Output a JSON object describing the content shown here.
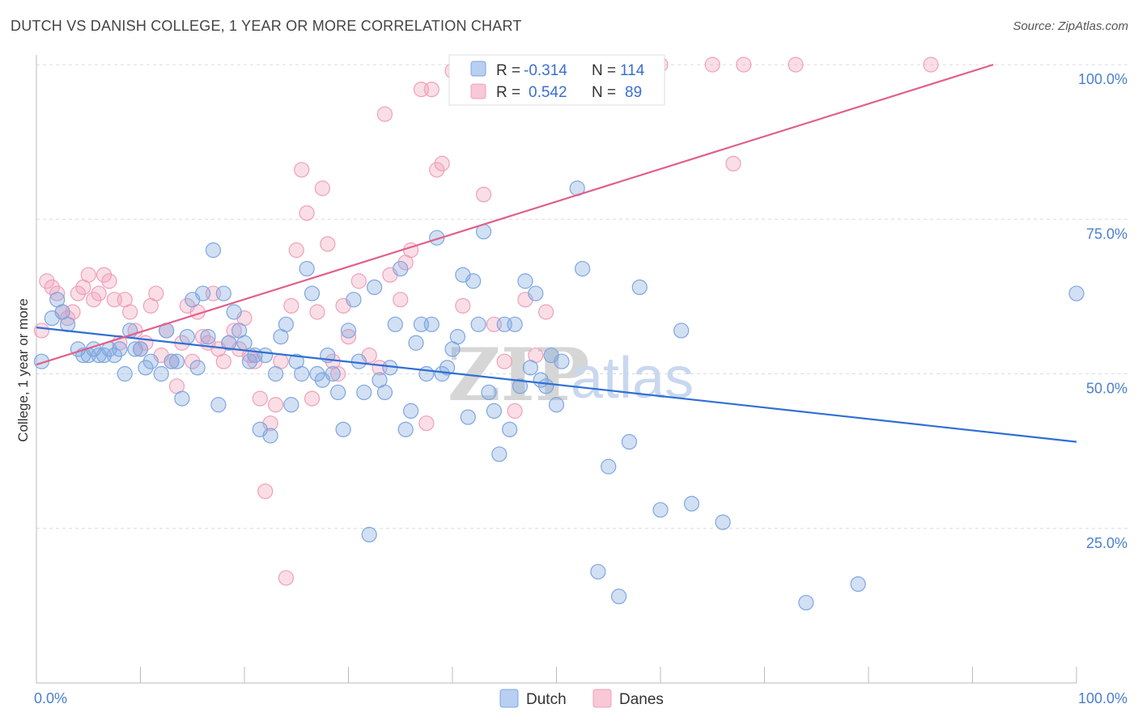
{
  "header": {
    "title": "DUTCH VS DANISH COLLEGE, 1 YEAR OR MORE CORRELATION CHART",
    "source": "Source: ZipAtlas.com"
  },
  "watermark": {
    "zip": "ZIP",
    "atlas": "atlas"
  },
  "legend": {
    "rows": [
      {
        "r_label": "R =",
        "r_value": "-0.314",
        "n_label": "N =",
        "n_value": "114",
        "color": "#7ea6e0"
      },
      {
        "r_label": "R =",
        "r_value": "0.542",
        "n_label": "N =",
        "n_value": "89",
        "color": "#f0a0b8"
      }
    ]
  },
  "bottom_legend": [
    {
      "label": "Dutch",
      "color": "#7ea6e0"
    },
    {
      "label": "Danes",
      "color": "#f0a0b8"
    }
  ],
  "chart_data": {
    "type": "scatter",
    "title": "DUTCH VS DANISH COLLEGE, 1 YEAR OR MORE CORRELATION CHART",
    "xlabel": "",
    "ylabel": "College, 1 year or more",
    "xlim": [
      0,
      100
    ],
    "ylim": [
      0,
      100
    ],
    "x_tick_labels": [
      "0.0%",
      "100.0%"
    ],
    "y_tick_labels": [
      {
        "value": 25,
        "label": "25.0%"
      },
      {
        "value": 50,
        "label": "50.0%"
      },
      {
        "value": 75,
        "label": "75.0%"
      },
      {
        "value": 100,
        "label": "100.0%"
      }
    ],
    "grid": true,
    "legend_position": "top-center",
    "series": [
      {
        "name": "Dutch",
        "color": "#7ea6e0",
        "line_color": "#2f6fd4",
        "trend": {
          "x": [
            0,
            100
          ],
          "y": [
            57.5,
            39.0
          ]
        },
        "points": [
          [
            0.5,
            52
          ],
          [
            1.5,
            59
          ],
          [
            2,
            62
          ],
          [
            2.5,
            60
          ],
          [
            3,
            58
          ],
          [
            4,
            54
          ],
          [
            4.5,
            53
          ],
          [
            5,
            53
          ],
          [
            5.5,
            54
          ],
          [
            6,
            53
          ],
          [
            6.5,
            53
          ],
          [
            7,
            54
          ],
          [
            7.5,
            53
          ],
          [
            8,
            54
          ],
          [
            8.5,
            50
          ],
          [
            9,
            57
          ],
          [
            9.5,
            54
          ],
          [
            10,
            54
          ],
          [
            10.5,
            51
          ],
          [
            11,
            52
          ],
          [
            12,
            50
          ],
          [
            12.5,
            57
          ],
          [
            13,
            52
          ],
          [
            13.5,
            52
          ],
          [
            14,
            46
          ],
          [
            14.5,
            56
          ],
          [
            15,
            62
          ],
          [
            15.5,
            51
          ],
          [
            16,
            63
          ],
          [
            16.5,
            56
          ],
          [
            17,
            70
          ],
          [
            17.5,
            45
          ],
          [
            18,
            63
          ],
          [
            18.5,
            55
          ],
          [
            19,
            60
          ],
          [
            19.5,
            57
          ],
          [
            20,
            55
          ],
          [
            20.5,
            52
          ],
          [
            21,
            53
          ],
          [
            21.5,
            41
          ],
          [
            22,
            53
          ],
          [
            22.5,
            40
          ],
          [
            23,
            50
          ],
          [
            23.5,
            56
          ],
          [
            24,
            58
          ],
          [
            24.5,
            45
          ],
          [
            25,
            52
          ],
          [
            25.5,
            50
          ],
          [
            26,
            67
          ],
          [
            26.5,
            63
          ],
          [
            27,
            50
          ],
          [
            27.5,
            49
          ],
          [
            28,
            53
          ],
          [
            28.5,
            50
          ],
          [
            29,
            47
          ],
          [
            29.5,
            41
          ],
          [
            30,
            57
          ],
          [
            30.5,
            62
          ],
          [
            31,
            52
          ],
          [
            31.5,
            47
          ],
          [
            32,
            24
          ],
          [
            32.5,
            64
          ],
          [
            33,
            49
          ],
          [
            33.5,
            47
          ],
          [
            34,
            51
          ],
          [
            34.5,
            58
          ],
          [
            35,
            67
          ],
          [
            35.5,
            41
          ],
          [
            36,
            44
          ],
          [
            36.5,
            55
          ],
          [
            37,
            58
          ],
          [
            37.5,
            50
          ],
          [
            38,
            58
          ],
          [
            38.5,
            72
          ],
          [
            39,
            50
          ],
          [
            39.5,
            51
          ],
          [
            40,
            54
          ],
          [
            40.5,
            56
          ],
          [
            41,
            66
          ],
          [
            41.5,
            43
          ],
          [
            42,
            65
          ],
          [
            42.5,
            58
          ],
          [
            43,
            73
          ],
          [
            43.5,
            47
          ],
          [
            44,
            44
          ],
          [
            44.5,
            37
          ],
          [
            45,
            58
          ],
          [
            45.5,
            41
          ],
          [
            46,
            58
          ],
          [
            46.5,
            48
          ],
          [
            47,
            65
          ],
          [
            47.5,
            51
          ],
          [
            48,
            63
          ],
          [
            48.5,
            49
          ],
          [
            49,
            48
          ],
          [
            49.5,
            53
          ],
          [
            50,
            45
          ],
          [
            50.5,
            52
          ],
          [
            52,
            80
          ],
          [
            52.5,
            67
          ],
          [
            54,
            18
          ],
          [
            55,
            35
          ],
          [
            56,
            14
          ],
          [
            57,
            39
          ],
          [
            58,
            64
          ],
          [
            60,
            28
          ],
          [
            62,
            57
          ],
          [
            63,
            29
          ],
          [
            66,
            26
          ],
          [
            74,
            13
          ],
          [
            79,
            16
          ],
          [
            100,
            63
          ]
        ]
      },
      {
        "name": "Danes",
        "color": "#f0a0b8",
        "line_color": "#e0608a",
        "trend": {
          "x": [
            0,
            92
          ],
          "y": [
            51.5,
            100
          ]
        },
        "points": [
          [
            0.5,
            57
          ],
          [
            1,
            65
          ],
          [
            1.5,
            64
          ],
          [
            2,
            63
          ],
          [
            2.5,
            60
          ],
          [
            3,
            59
          ],
          [
            3.5,
            60
          ],
          [
            4,
            63
          ],
          [
            4.5,
            64
          ],
          [
            5,
            66
          ],
          [
            5.5,
            62
          ],
          [
            6,
            63
          ],
          [
            6.5,
            66
          ],
          [
            7,
            65
          ],
          [
            7.5,
            62
          ],
          [
            8,
            55
          ],
          [
            8.5,
            62
          ],
          [
            9,
            60
          ],
          [
            9.5,
            57
          ],
          [
            10,
            54
          ],
          [
            10.5,
            55
          ],
          [
            11,
            61
          ],
          [
            11.5,
            63
          ],
          [
            12,
            53
          ],
          [
            12.5,
            57
          ],
          [
            13,
            52
          ],
          [
            13.5,
            48
          ],
          [
            14,
            55
          ],
          [
            14.5,
            61
          ],
          [
            15,
            52
          ],
          [
            15.5,
            60
          ],
          [
            16,
            56
          ],
          [
            16.5,
            55
          ],
          [
            17,
            63
          ],
          [
            17.5,
            54
          ],
          [
            18,
            52
          ],
          [
            18.5,
            55
          ],
          [
            19,
            57
          ],
          [
            19.5,
            54
          ],
          [
            20,
            59
          ],
          [
            20.5,
            53
          ],
          [
            21,
            52
          ],
          [
            21.5,
            46
          ],
          [
            22,
            31
          ],
          [
            22.5,
            42
          ],
          [
            23,
            45
          ],
          [
            23.5,
            52
          ],
          [
            24,
            17
          ],
          [
            24.5,
            61
          ],
          [
            25,
            70
          ],
          [
            25.5,
            83
          ],
          [
            26,
            76
          ],
          [
            26.5,
            46
          ],
          [
            27,
            60
          ],
          [
            27.5,
            80
          ],
          [
            28,
            71
          ],
          [
            28.5,
            52
          ],
          [
            29,
            50
          ],
          [
            29.5,
            61
          ],
          [
            30,
            56
          ],
          [
            31,
            65
          ],
          [
            32,
            53
          ],
          [
            33,
            51
          ],
          [
            33.5,
            92
          ],
          [
            34,
            66
          ],
          [
            35,
            62
          ],
          [
            35.5,
            68
          ],
          [
            36,
            70
          ],
          [
            37,
            96
          ],
          [
            37.5,
            42
          ],
          [
            38,
            96
          ],
          [
            38.5,
            83
          ],
          [
            39,
            84
          ],
          [
            40,
            99
          ],
          [
            41,
            61
          ],
          [
            42,
            99
          ],
          [
            43,
            79
          ],
          [
            44,
            58
          ],
          [
            45,
            52
          ],
          [
            46,
            44
          ],
          [
            47,
            62
          ],
          [
            48,
            53
          ],
          [
            49,
            60
          ],
          [
            54,
            100
          ],
          [
            55,
            100
          ],
          [
            60,
            100
          ],
          [
            65,
            100
          ],
          [
            67,
            84
          ],
          [
            68,
            100
          ],
          [
            73,
            100
          ],
          [
            86,
            100
          ]
        ]
      }
    ]
  }
}
